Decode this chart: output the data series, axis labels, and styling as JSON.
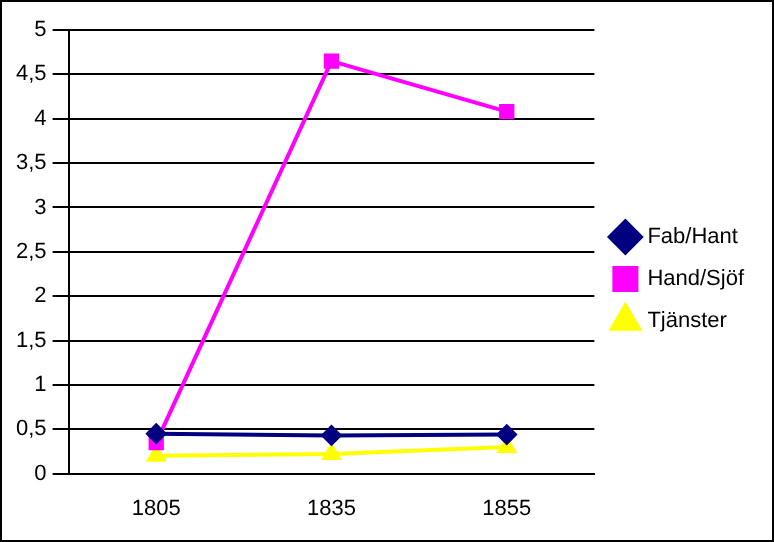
{
  "chart_data": {
    "type": "line",
    "categories": [
      "1805",
      "1835",
      "1855"
    ],
    "series": [
      {
        "name": "Fab/Hant",
        "color": "#000080",
        "marker": "diamond",
        "values": [
          0.45,
          0.43,
          0.44
        ]
      },
      {
        "name": "Hand/Sjöf",
        "color": "#ff00ff",
        "marker": "square",
        "values": [
          0.35,
          4.65,
          4.08
        ]
      },
      {
        "name": "Tjänster",
        "color": "#ffff00",
        "marker": "triangle",
        "values": [
          0.2,
          0.22,
          0.3
        ]
      }
    ],
    "ylim": [
      0,
      5
    ],
    "yticks": [
      0,
      {
        "value": 0.5,
        "label": "0,5"
      },
      1,
      {
        "value": 1.5,
        "label": "1,5"
      },
      2,
      {
        "value": 2.5,
        "label": "2,5"
      },
      3,
      {
        "value": 3.5,
        "label": "3,5"
      },
      4,
      {
        "value": 4.5,
        "label": "4,5"
      },
      5
    ],
    "grid": "y",
    "legend": "right",
    "line_style": "solid"
  }
}
